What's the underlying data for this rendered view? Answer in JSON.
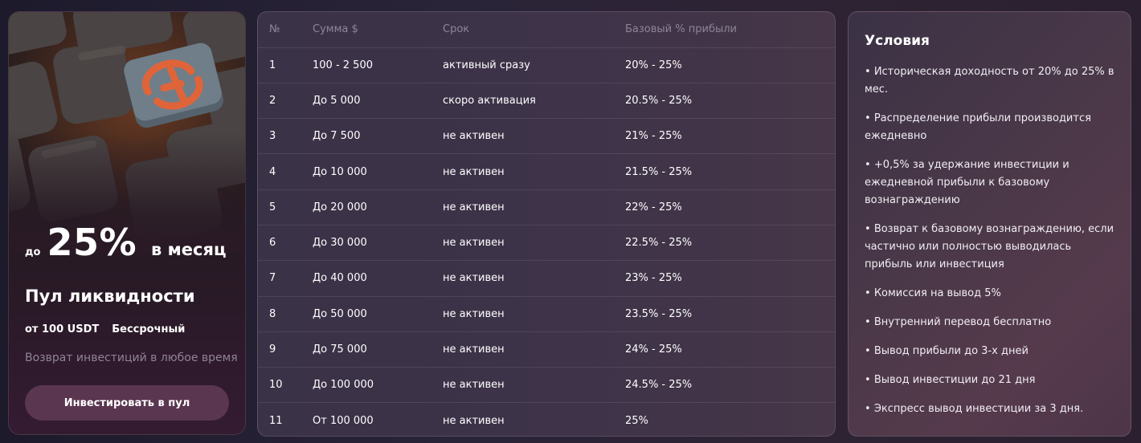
{
  "promo": {
    "rate_prefix": "до",
    "rate_value": "25%",
    "rate_suffix": "в месяц",
    "title": "Пул ликвидности",
    "min_amount": "от 100 USDT",
    "term": "Бессрочный",
    "description": "Возврат инвестиций в любое время",
    "button_label": "Инвестировать в пул",
    "accent_color": "#e0643a"
  },
  "table": {
    "headers": [
      "№",
      "Сумма $",
      "Срок",
      "Базовый % прибыли"
    ],
    "rows": [
      [
        "1",
        "100 - 2 500",
        "активный сразу",
        "20% - 25%"
      ],
      [
        "2",
        "До 5 000",
        "скоро активация",
        "20.5% - 25%"
      ],
      [
        "3",
        "До 7 500",
        "не активен",
        "21% - 25%"
      ],
      [
        "4",
        "До 10 000",
        "не активен",
        "21.5% - 25%"
      ],
      [
        "5",
        "До 20 000",
        "не активен",
        "22% - 25%"
      ],
      [
        "6",
        "До 30 000",
        "не активен",
        "22.5% - 25%"
      ],
      [
        "7",
        "До 40 000",
        "не активен",
        "23% - 25%"
      ],
      [
        "8",
        "До 50 000",
        "не активен",
        "23.5% - 25%"
      ],
      [
        "9",
        "До 75 000",
        "не активен",
        "24% - 25%"
      ],
      [
        "10",
        "До 100 000",
        "не активен",
        "24.5% - 25%"
      ],
      [
        "11",
        "От 100 000",
        "не активен",
        "25%"
      ]
    ]
  },
  "conditions": {
    "title": "Условия",
    "items": [
      "Историческая доходность от 20% до 25% в мес.",
      "Распределение прибыли производится ежедневно",
      "+0,5% за удержание инвестиции и ежедневной прибыли к базовому вознаграждению",
      "Возврат к базовому вознаграждению, если частично или полностью выводилась прибыль или инвестиция",
      "Комиссия на вывод 5%",
      "Внутренний перевод бесплатно",
      "Вывод прибыли до 3-х дней",
      "Вывод инвестиции до 21 дня",
      "Экспресс вывод инвестиции за 3 дня."
    ]
  }
}
